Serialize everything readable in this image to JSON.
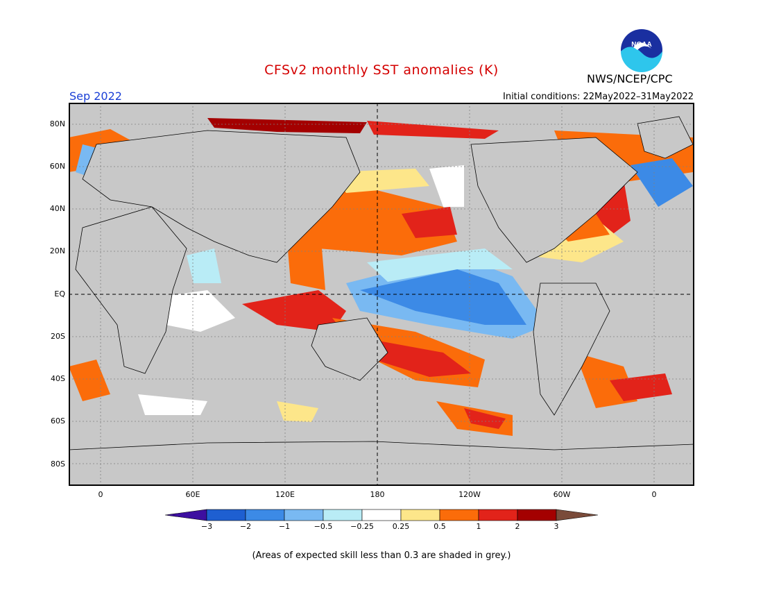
{
  "header": {
    "title": "CFSv2 monthly SST anomalies (K)",
    "agency": "NWS/NCEP/CPC",
    "period": "Sep 2022",
    "initial_conditions": "Initial conditions: 22May2022–31May2022"
  },
  "logo": {
    "text": "NOAA",
    "icon": "noaa-logo"
  },
  "map": {
    "x_ticks": [
      "0",
      "60E",
      "120E",
      "180",
      "120W",
      "60W",
      "0"
    ],
    "y_ticks": [
      "80N",
      "60N",
      "40N",
      "20N",
      "EQ",
      "20S",
      "40S",
      "60S",
      "80S"
    ],
    "land_color": "#c8c8c8",
    "grid_color": "#808080"
  },
  "colorbar": {
    "labels": [
      "−3",
      "−2",
      "−1",
      "−0.5",
      "−0.25",
      "0.25",
      "0.5",
      "1",
      "2",
      "3"
    ],
    "colors": [
      "#3d0fa0",
      "#1e5fd1",
      "#3c8ae6",
      "#79b9f2",
      "#b9ecf6",
      "#ffffff",
      "#fde68a",
      "#fb6c0a",
      "#e2231a",
      "#a40000",
      "#7a4b3a"
    ]
  },
  "footnote": "(Areas of expected skill less than 0.3 are shaded in grey.)"
}
